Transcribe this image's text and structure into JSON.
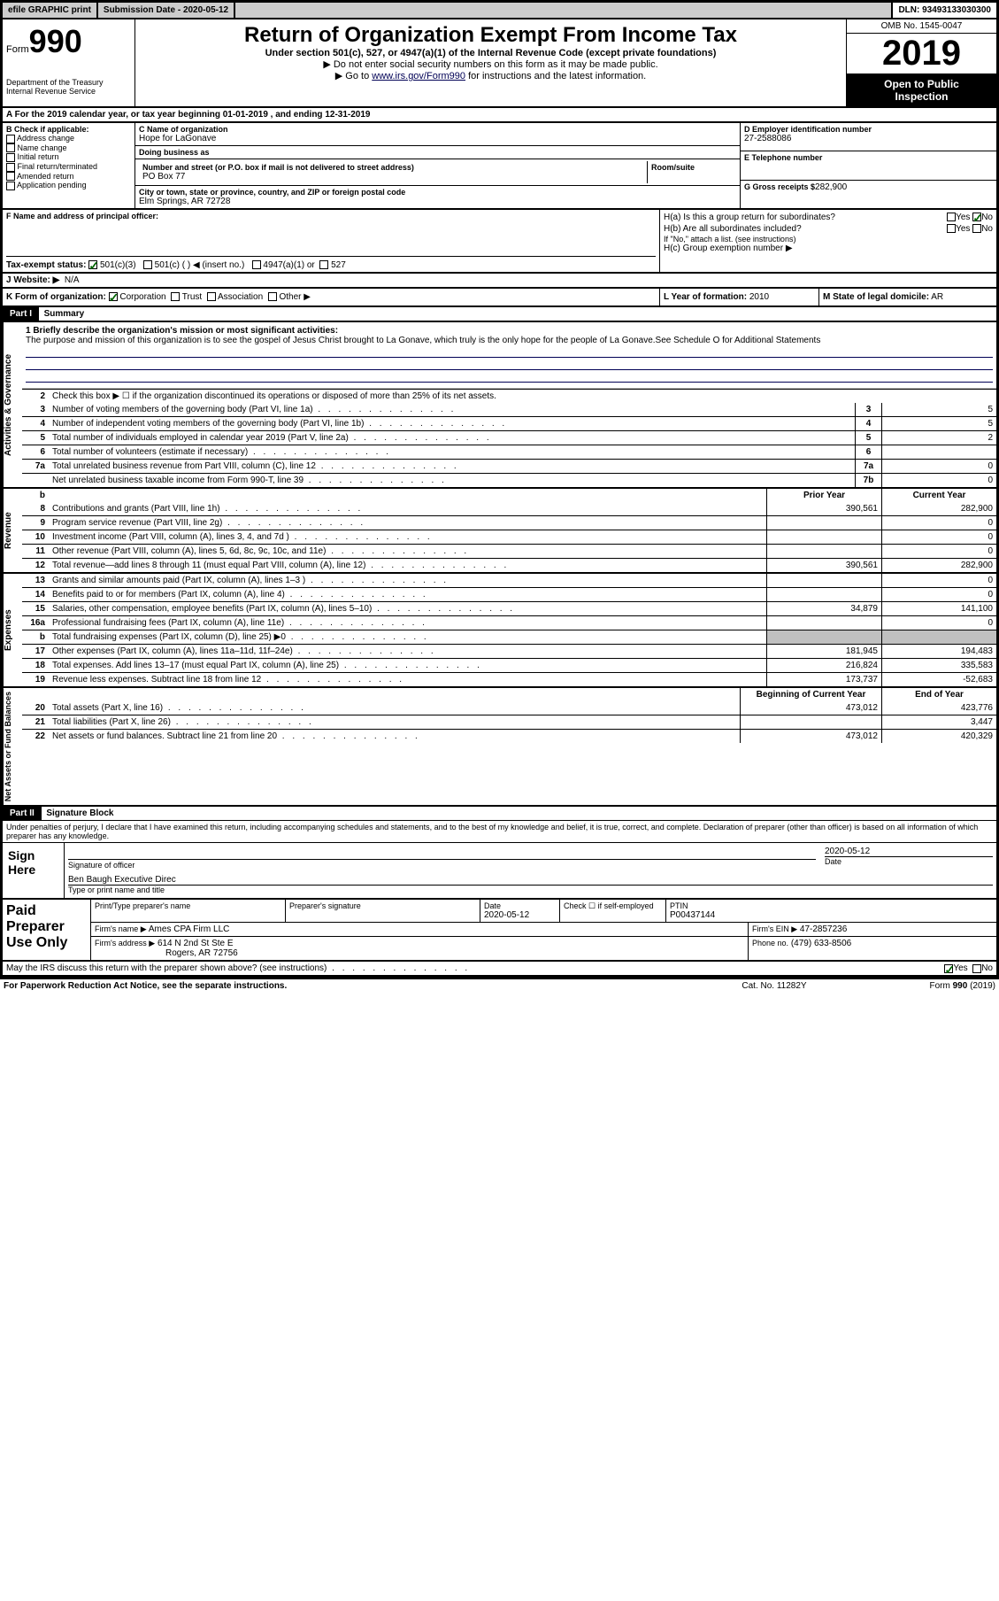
{
  "topbar": {
    "efile_label": "efile GRAPHIC print",
    "submission_label": "Submission Date -",
    "submission_date": "2020-05-12",
    "dln_label": "DLN:",
    "dln": "93493133030300"
  },
  "header": {
    "form_prefix": "Form",
    "form_number": "990",
    "dept1": "Department of the Treasury",
    "dept2": "Internal Revenue Service",
    "title": "Return of Organization Exempt From Income Tax",
    "subtitle": "Under section 501(c), 527, or 4947(a)(1) of the Internal Revenue Code (except private foundations)",
    "note1": "▶ Do not enter social security numbers on this form as it may be made public.",
    "note2_pre": "▶ Go to ",
    "note2_link": "www.irs.gov/Form990",
    "note2_post": " for instructions and the latest information.",
    "omb": "OMB No. 1545-0047",
    "year": "2019",
    "inspect1": "Open to Public",
    "inspect2": "Inspection"
  },
  "section_a": {
    "text": "A For the 2019 calendar year, or tax year beginning 01-01-2019   , and ending 12-31-2019"
  },
  "section_b": {
    "header": "B Check if applicable:",
    "opts": [
      "Address change",
      "Name change",
      "Initial return",
      "Final return/terminated",
      "Amended return",
      "Application pending"
    ]
  },
  "section_c": {
    "name_label": "C Name of organization",
    "name": "Hope for LaGonave",
    "dba_label": "Doing business as",
    "dba": "",
    "street_label": "Number and street (or P.O. box if mail is not delivered to street address)",
    "room_label": "Room/suite",
    "street": "PO Box 77",
    "city_label": "City or town, state or province, country, and ZIP or foreign postal code",
    "city": "Elm Springs, AR  72728"
  },
  "section_d": {
    "ein_label": "D Employer identification number",
    "ein": "27-2588086",
    "phone_label": "E Telephone number",
    "phone": "",
    "gross_label": "G Gross receipts $",
    "gross": "282,900"
  },
  "section_f": {
    "label": "F  Name and address of principal officer:",
    "value": ""
  },
  "section_h": {
    "ha_label": "H(a)  Is this a group return for subordinates?",
    "yes": "Yes",
    "no": "No",
    "hb_label": "H(b)  Are all subordinates included?",
    "hb_note": "If \"No,\" attach a list. (see instructions)",
    "hc_label": "H(c)  Group exemption number ▶"
  },
  "section_i": {
    "label": "Tax-exempt status:",
    "opts": [
      "501(c)(3)",
      "501(c) (  ) ◀ (insert no.)",
      "4947(a)(1) or",
      "527"
    ]
  },
  "section_j": {
    "label": "J   Website: ▶",
    "value": "N/A"
  },
  "section_k": {
    "label": "K Form of organization:",
    "opts": [
      "Corporation",
      "Trust",
      "Association",
      "Other ▶"
    ]
  },
  "section_l": {
    "label": "L Year of formation:",
    "value": "2010"
  },
  "section_m": {
    "label": "M State of legal domicile:",
    "value": "AR"
  },
  "part1": {
    "header": "Part I",
    "title": "Summary",
    "line1_label": "1  Briefly describe the organization's mission or most significant activities:",
    "line1_text": "The purpose and mission of this organization is to see the gospel of Jesus Christ brought to La Gonave, which truly is the only hope for the people of La Gonave.See Schedule O for Additional Statements",
    "line2": "Check this box ▶ ☐ if the organization discontinued its operations or disposed of more than 25% of its net assets.",
    "rows_governance": [
      {
        "n": "3",
        "t": "Number of voting members of the governing body (Part VI, line 1a)",
        "box": "3",
        "v": "5"
      },
      {
        "n": "4",
        "t": "Number of independent voting members of the governing body (Part VI, line 1b)",
        "box": "4",
        "v": "5"
      },
      {
        "n": "5",
        "t": "Total number of individuals employed in calendar year 2019 (Part V, line 2a)",
        "box": "5",
        "v": "2"
      },
      {
        "n": "6",
        "t": "Total number of volunteers (estimate if necessary)",
        "box": "6",
        "v": ""
      },
      {
        "n": "7a",
        "t": "Total unrelated business revenue from Part VIII, column (C), line 12",
        "box": "7a",
        "v": "0"
      },
      {
        "n": "",
        "t": "Net unrelated business taxable income from Form 990-T, line 39",
        "box": "7b",
        "v": "0"
      }
    ],
    "prior_label": "Prior Year",
    "current_label": "Current Year",
    "rows_revenue": [
      {
        "n": "8",
        "t": "Contributions and grants (Part VIII, line 1h)",
        "p": "390,561",
        "c": "282,900"
      },
      {
        "n": "9",
        "t": "Program service revenue (Part VIII, line 2g)",
        "p": "",
        "c": "0"
      },
      {
        "n": "10",
        "t": "Investment income (Part VIII, column (A), lines 3, 4, and 7d )",
        "p": "",
        "c": "0"
      },
      {
        "n": "11",
        "t": "Other revenue (Part VIII, column (A), lines 5, 6d, 8c, 9c, 10c, and 11e)",
        "p": "",
        "c": "0"
      },
      {
        "n": "12",
        "t": "Total revenue—add lines 8 through 11 (must equal Part VIII, column (A), line 12)",
        "p": "390,561",
        "c": "282,900"
      }
    ],
    "rows_expenses": [
      {
        "n": "13",
        "t": "Grants and similar amounts paid (Part IX, column (A), lines 1–3 )",
        "p": "",
        "c": "0"
      },
      {
        "n": "14",
        "t": "Benefits paid to or for members (Part IX, column (A), line 4)",
        "p": "",
        "c": "0"
      },
      {
        "n": "15",
        "t": "Salaries, other compensation, employee benefits (Part IX, column (A), lines 5–10)",
        "p": "34,879",
        "c": "141,100"
      },
      {
        "n": "16a",
        "t": "Professional fundraising fees (Part IX, column (A), line 11e)",
        "p": "",
        "c": "0"
      },
      {
        "n": "b",
        "t": "Total fundraising expenses (Part IX, column (D), line 25) ▶0",
        "p": "GRAY",
        "c": "GRAY"
      },
      {
        "n": "17",
        "t": "Other expenses (Part IX, column (A), lines 11a–11d, 11f–24e)",
        "p": "181,945",
        "c": "194,483"
      },
      {
        "n": "18",
        "t": "Total expenses. Add lines 13–17 (must equal Part IX, column (A), line 25)",
        "p": "216,824",
        "c": "335,583"
      },
      {
        "n": "19",
        "t": "Revenue less expenses. Subtract line 18 from line 12",
        "p": "173,737",
        "c": "-52,683"
      }
    ],
    "begin_label": "Beginning of Current Year",
    "end_label": "End of Year",
    "rows_net": [
      {
        "n": "20",
        "t": "Total assets (Part X, line 16)",
        "p": "473,012",
        "c": "423,776"
      },
      {
        "n": "21",
        "t": "Total liabilities (Part X, line 26)",
        "p": "",
        "c": "3,447"
      },
      {
        "n": "22",
        "t": "Net assets or fund balances. Subtract line 21 from line 20",
        "p": "473,012",
        "c": "420,329"
      }
    ],
    "side_gov": "Activities & Governance",
    "side_rev": "Revenue",
    "side_exp": "Expenses",
    "side_net": "Net Assets or Fund Balances"
  },
  "part2": {
    "header": "Part II",
    "title": "Signature Block",
    "decl": "Under penalties of perjury, I declare that I have examined this return, including accompanying schedules and statements, and to the best of my knowledge and belief, it is true, correct, and complete. Declaration of preparer (other than officer) is based on all information of which preparer has any knowledge."
  },
  "sign": {
    "left": "Sign Here",
    "sig_label": "Signature of officer",
    "date_label": "Date",
    "date": "2020-05-12",
    "name": "Ben Baugh  Executive Direc",
    "name_label": "Type or print name and title"
  },
  "prep": {
    "left": "Paid Preparer Use Only",
    "name_label": "Print/Type preparer's name",
    "sig_label": "Preparer's signature",
    "date_label": "Date",
    "date": "2020-05-12",
    "check_label": "Check ☐ if self-employed",
    "ptin_label": "PTIN",
    "ptin": "P00437144",
    "firm_label": "Firm's name   ▶",
    "firm": "Ames CPA Firm LLC",
    "ein_label": "Firm's EIN ▶",
    "ein": "47-2857236",
    "addr_label": "Firm's address ▶",
    "addr1": "614 N 2nd St Ste E",
    "addr2": "Rogers, AR  72756",
    "phone_label": "Phone no.",
    "phone": "(479) 633-8506"
  },
  "footer": {
    "discuss": "May the IRS discuss this return with the preparer shown above? (see instructions)",
    "yes": "Yes",
    "no": "No",
    "paperwork": "For Paperwork Reduction Act Notice, see the separate instructions.",
    "cat": "Cat. No. 11282Y",
    "form": "Form 990 (2019)"
  }
}
